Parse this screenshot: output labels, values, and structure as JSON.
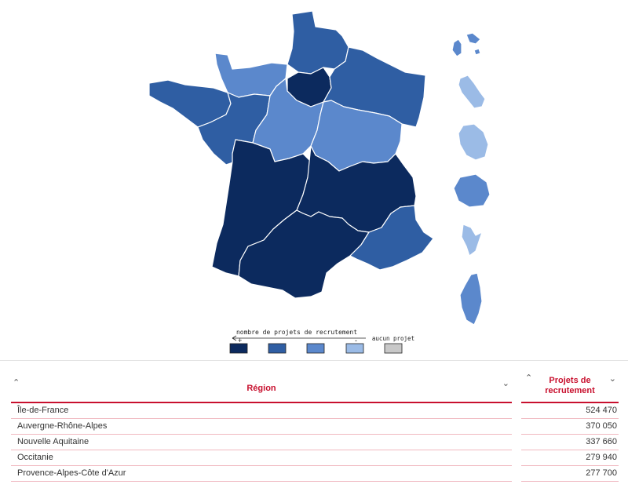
{
  "map": {
    "colors": {
      "level1": "#0c2a5e",
      "level2": "#2f5ea3",
      "level3": "#5b88cc",
      "level4": "#9bbbe6",
      "none": "#c8c8c8"
    },
    "regions": [
      {
        "name": "Île-de-France",
        "level": "level1"
      },
      {
        "name": "Hauts-de-France",
        "level": "level2"
      },
      {
        "name": "Normandie",
        "level": "level3"
      },
      {
        "name": "Grand Est",
        "level": "level2"
      },
      {
        "name": "Bretagne",
        "level": "level2"
      },
      {
        "name": "Pays de la Loire",
        "level": "level2"
      },
      {
        "name": "Centre-Val de Loire",
        "level": "level3"
      },
      {
        "name": "Bourgogne-Franche-Comté",
        "level": "level3"
      },
      {
        "name": "Nouvelle Aquitaine",
        "level": "level1"
      },
      {
        "name": "Auvergne-Rhône-Alpes",
        "level": "level1"
      },
      {
        "name": "Occitanie",
        "level": "level1"
      },
      {
        "name": "Provence-Alpes-Côte d'Azur",
        "level": "level2"
      },
      {
        "name": "Guadeloupe",
        "level": "level3"
      },
      {
        "name": "Martinique",
        "level": "level4"
      },
      {
        "name": "Guyane",
        "level": "level4"
      },
      {
        "name": "La Réunion",
        "level": "level3"
      },
      {
        "name": "Mayotte",
        "level": "level4"
      },
      {
        "name": "Corse",
        "level": "level3"
      }
    ]
  },
  "legend": {
    "title": "nombre de projets de recrutement",
    "plus": "+",
    "minus": "-",
    "none_label": "aucun projet"
  },
  "table": {
    "col_region": "Région",
    "col_projects_line1": "Projets de",
    "col_projects_line2": "recrutement",
    "sort_asc_icon": "⌃",
    "sort_desc_icon": "⌄",
    "rows": [
      {
        "region": "Île-de-France",
        "value": "524 470"
      },
      {
        "region": "Auvergne-Rhône-Alpes",
        "value": "370 050"
      },
      {
        "region": "Nouvelle Aquitaine",
        "value": "337 660"
      },
      {
        "region": "Occitanie",
        "value": "279 940"
      },
      {
        "region": "Provence-Alpes-Côte d'Azur",
        "value": "277 700"
      }
    ]
  }
}
